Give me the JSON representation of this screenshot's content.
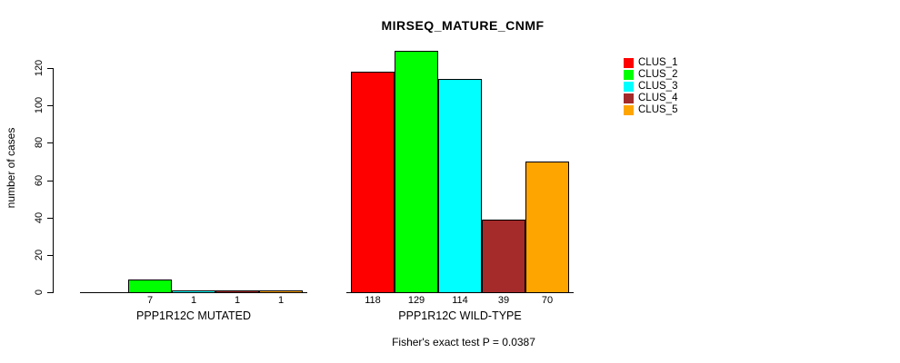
{
  "chart_data": {
    "type": "bar",
    "title": "MIRSEQ_MATURE_CNMF",
    "ylabel": "number of cases",
    "ylim": [
      0,
      120
    ],
    "yticks": [
      0,
      20,
      40,
      60,
      80,
      100,
      120
    ],
    "grid": false,
    "legend_position": "top-right",
    "series_colors": [
      "#FF0000",
      "#00FF00",
      "#00FFFF",
      "#A52A2A",
      "#FFA500"
    ],
    "groups": [
      {
        "label": "PPP1R12C MUTATED",
        "values": [
          0,
          7,
          1,
          1,
          1
        ],
        "bar_labels": [
          "",
          "7",
          "1",
          "1",
          "1"
        ]
      },
      {
        "label": "PPP1R12C WILD-TYPE",
        "values": [
          118,
          129,
          114,
          39,
          70
        ],
        "bar_labels": [
          "118",
          "129",
          "114",
          "39",
          "70"
        ]
      }
    ],
    "legend": [
      {
        "label": "CLUS_1",
        "color": "#FF0000"
      },
      {
        "label": "CLUS_2",
        "color": "#00FF00"
      },
      {
        "label": "CLUS_3",
        "color": "#00FFFF"
      },
      {
        "label": "CLUS_4",
        "color": "#A52A2A"
      },
      {
        "label": "CLUS_5",
        "color": "#FFA500"
      }
    ],
    "footnote": "Fisher's exact test P = 0.0387"
  }
}
